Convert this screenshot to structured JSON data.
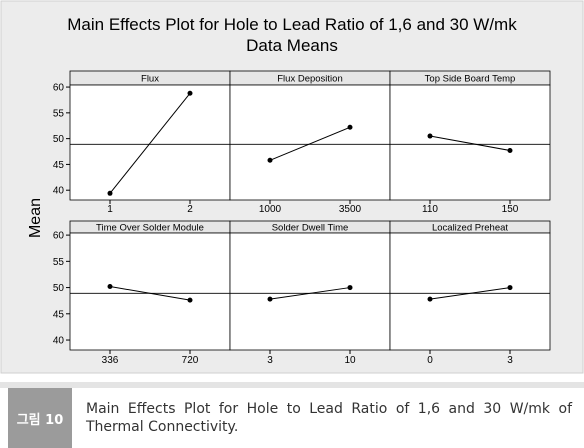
{
  "figure": {
    "title": "Main Effects Plot for Hole to Lead Ratio of 1,6 and 30 W/mk",
    "subtitle": "Data Means",
    "ylabel": "Mean",
    "ylim": [
      38.1,
      60.4
    ],
    "yticks": [
      40,
      45,
      50,
      55,
      60
    ]
  },
  "chart_data": [
    {
      "type": "line",
      "title": "Flux",
      "categories": [
        "1",
        "2"
      ],
      "values": [
        39.4,
        58.8
      ],
      "mean_line": 48.9,
      "color": "#000000"
    },
    {
      "type": "line",
      "title": "Flux Deposition",
      "categories": [
        "1000",
        "3500"
      ],
      "values": [
        45.8,
        52.2
      ],
      "mean_line": 48.9,
      "color": "#000000"
    },
    {
      "type": "line",
      "title": "Top Side Board Temp",
      "categories": [
        "110",
        "150"
      ],
      "values": [
        50.5,
        47.7
      ],
      "mean_line": 48.9,
      "color": "#000000"
    },
    {
      "type": "line",
      "title": "Time Over Solder Module",
      "categories": [
        "336",
        "720"
      ],
      "values": [
        50.2,
        47.6
      ],
      "mean_line": 48.9,
      "color": "#000000"
    },
    {
      "type": "line",
      "title": "Solder Dwell Time",
      "categories": [
        "3",
        "10"
      ],
      "values": [
        47.8,
        50.0
      ],
      "mean_line": 48.9,
      "color": "#000000"
    },
    {
      "type": "line",
      "title": "Localized Preheat",
      "categories": [
        "0",
        "3"
      ],
      "values": [
        47.8,
        50.0
      ],
      "mean_line": 48.9,
      "color": "#000000"
    }
  ],
  "caption": {
    "label": "그림 10",
    "text": "Main Effects Plot for Hole to Lead Ratio of 1,6 and 30 W/mk of Thermal Connectivity."
  }
}
